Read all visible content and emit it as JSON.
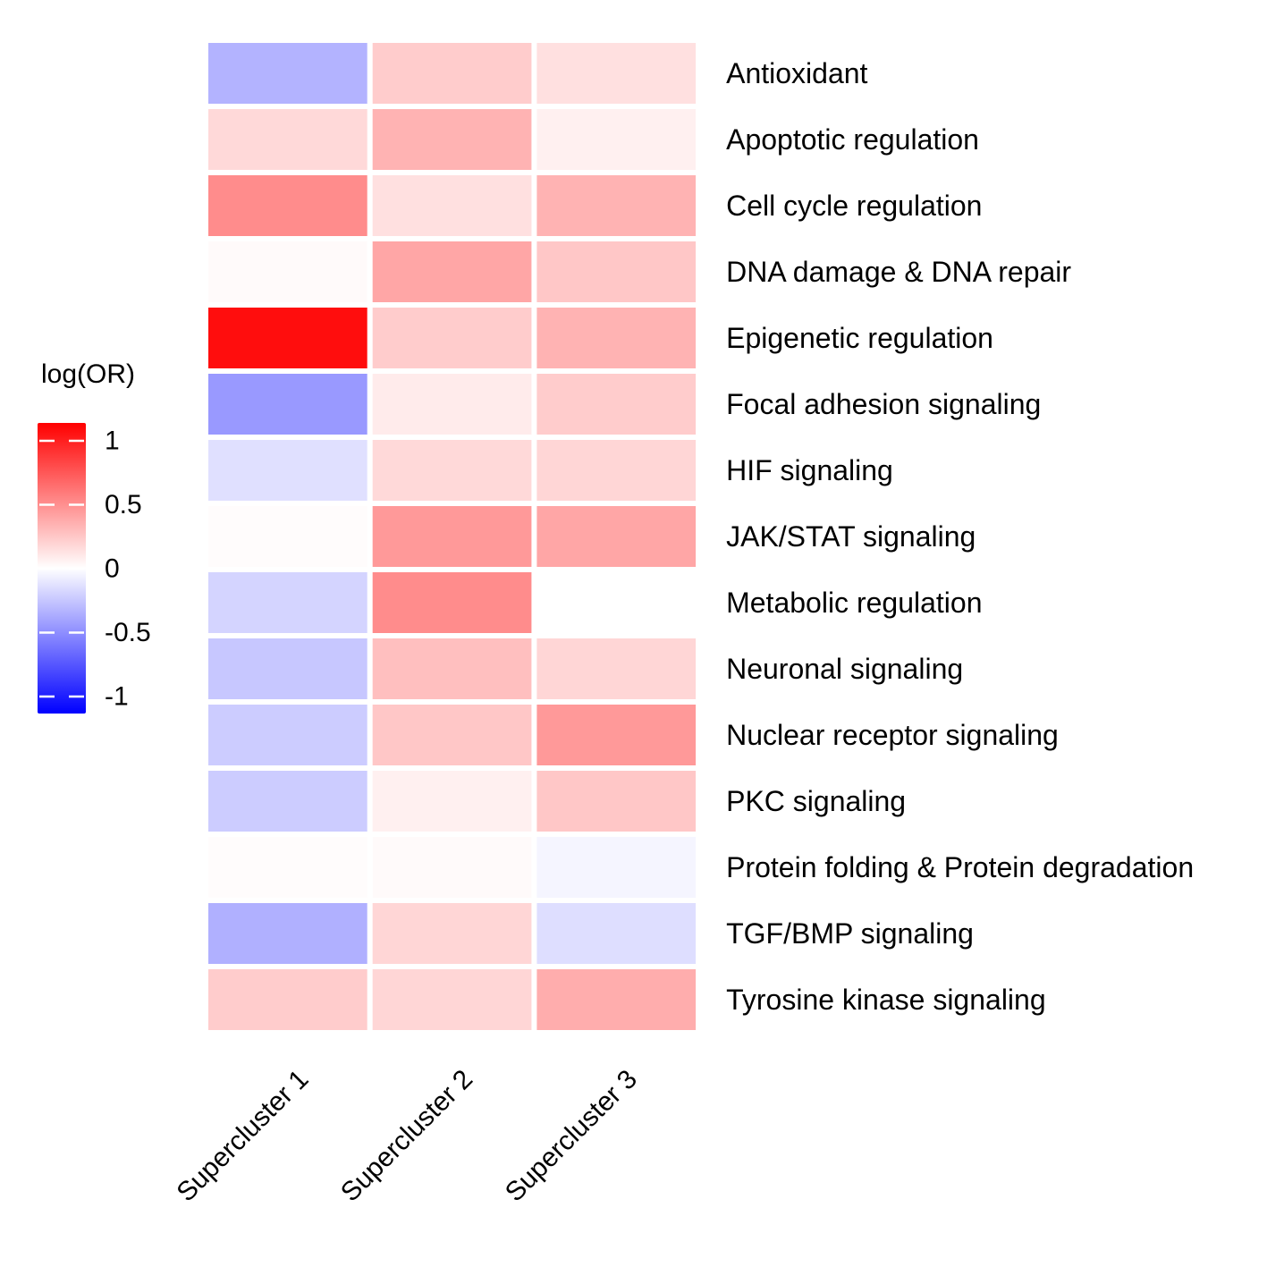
{
  "chart_data": {
    "type": "heatmap",
    "title": "",
    "xlabel": "",
    "ylabel": "",
    "columns": [
      "Supercluster 1",
      "Supercluster 2",
      "Supercluster 3"
    ],
    "rows": [
      "Antioxidant",
      "Apoptotic regulation",
      "Cell cycle regulation",
      "DNA damage & DNA repair",
      "Epigenetic regulation",
      "Focal adhesion signaling",
      "HIF signaling",
      "JAK/STAT signaling",
      "Metabolic regulation",
      "Neuronal signaling",
      "Nuclear receptor signaling",
      "PKC signaling",
      "Protein folding & Protein degradation",
      "TGF/BMP signaling",
      "Tyrosine kinase signaling"
    ],
    "values": [
      [
        -0.3,
        0.2,
        0.12
      ],
      [
        0.15,
        0.3,
        0.06
      ],
      [
        0.45,
        0.12,
        0.3
      ],
      [
        0.02,
        0.35,
        0.22
      ],
      [
        0.95,
        0.2,
        0.3
      ],
      [
        -0.4,
        0.08,
        0.2
      ],
      [
        -0.12,
        0.15,
        0.16
      ],
      [
        0.01,
        0.4,
        0.35
      ],
      [
        -0.17,
        0.45,
        0.0
      ],
      [
        -0.22,
        0.25,
        0.16
      ],
      [
        -0.2,
        0.22,
        0.4
      ],
      [
        -0.2,
        0.06,
        0.22
      ],
      [
        0.01,
        0.02,
        -0.04
      ],
      [
        -0.31,
        0.16,
        -0.13
      ],
      [
        0.2,
        0.16,
        0.32
      ]
    ],
    "colorbar": {
      "title": "log(OR)",
      "ticks": [
        1,
        0.5,
        0,
        -0.5,
        -1
      ],
      "tick_labels": [
        "1",
        "0.5",
        "0",
        "-0.5",
        "-1"
      ],
      "range": [
        -1,
        1
      ],
      "low_color": "#0000ff",
      "mid_color": "#ffffff",
      "high_color": "#ff0000"
    },
    "legend_position": "left"
  }
}
